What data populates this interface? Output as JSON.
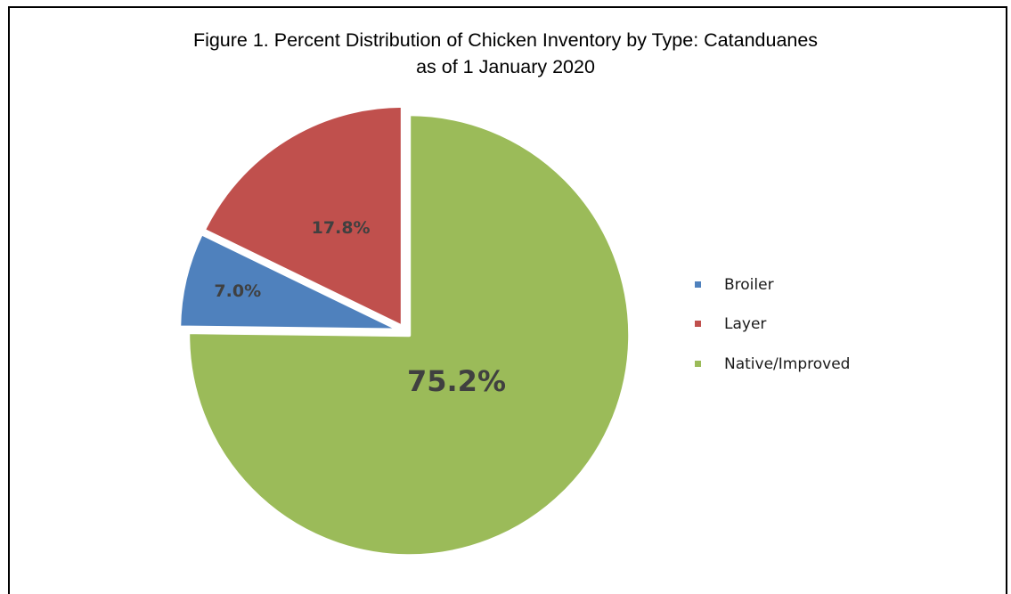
{
  "chart_data": {
    "type": "pie",
    "title": "Figure 1. Percent Distribution of Chicken Inventory by Type: Catanduanes",
    "subtitle": "as of 1 January 2020",
    "categories": [
      "Broiler",
      "Layer",
      "Native/Improved"
    ],
    "values": [
      7.0,
      17.8,
      75.2
    ],
    "labels": [
      "7.0%",
      "17.8%",
      "75.2%"
    ],
    "colors": [
      "#4F81BD",
      "#C0504D",
      "#9BBB59"
    ],
    "legend_position": "right",
    "exploded": true
  }
}
